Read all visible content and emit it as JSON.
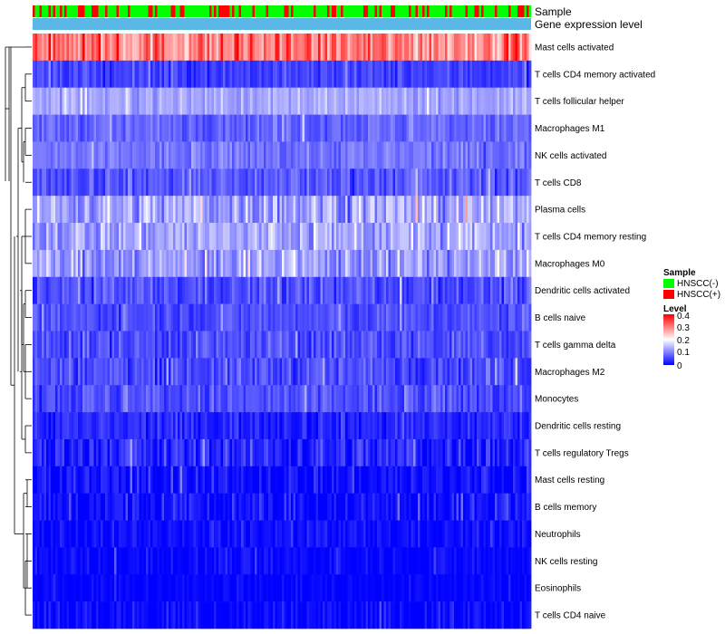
{
  "chart_data": {
    "type": "heatmap",
    "title": "",
    "column_annotations": [
      {
        "name": "Sample",
        "type": "categorical"
      },
      {
        "name": "Gene expression level",
        "type": "constant",
        "color": "#5bb8e6"
      }
    ],
    "rows": [
      {
        "label": "Mast cells activated",
        "mean": 0.3,
        "spread": 0.1
      },
      {
        "label": "T cells CD4 memory activated",
        "mean": 0.05,
        "spread": 0.04
      },
      {
        "label": "T cells follicular helper",
        "mean": 0.13,
        "spread": 0.035
      },
      {
        "label": "Macrophages M1",
        "mean": 0.08,
        "spread": 0.04
      },
      {
        "label": "NK cells activated",
        "mean": 0.09,
        "spread": 0.04
      },
      {
        "label": "T cells CD8",
        "mean": 0.07,
        "spread": 0.05
      },
      {
        "label": "Plasma cells",
        "mean": 0.13,
        "spread": 0.08
      },
      {
        "label": "T cells CD4 memory resting",
        "mean": 0.13,
        "spread": 0.07
      },
      {
        "label": "Macrophages M0",
        "mean": 0.12,
        "spread": 0.07
      },
      {
        "label": "Dendritic cells activated",
        "mean": 0.06,
        "spread": 0.05
      },
      {
        "label": "B cells naive",
        "mean": 0.06,
        "spread": 0.04
      },
      {
        "label": "T cells gamma delta",
        "mean": 0.06,
        "spread": 0.05
      },
      {
        "label": "Macrophages M2",
        "mean": 0.06,
        "spread": 0.05
      },
      {
        "label": "Monocytes",
        "mean": 0.06,
        "spread": 0.05
      },
      {
        "label": "Dendritic cells resting",
        "mean": 0.03,
        "spread": 0.04
      },
      {
        "label": "T cells regulatory  Tregs",
        "mean": 0.03,
        "spread": 0.06
      },
      {
        "label": "Mast cells resting",
        "mean": 0.01,
        "spread": 0.05
      },
      {
        "label": "B cells memory",
        "mean": 0.01,
        "spread": 0.05
      },
      {
        "label": "Neutrophils",
        "mean": 0.01,
        "spread": 0.03
      },
      {
        "label": "NK cells resting",
        "mean": 0.005,
        "spread": 0.03
      },
      {
        "label": "Eosinophils",
        "mean": 0.002,
        "spread": 0.02
      },
      {
        "label": "T cells CD4 naive",
        "mean": 0.005,
        "spread": 0.04
      }
    ],
    "n_samples": 220,
    "proportion_hnscc_pos": 0.28,
    "legend": {
      "sample": {
        "title": "Sample",
        "items": [
          {
            "label": "HNSCC(-)",
            "color": "#00ff00"
          },
          {
            "label": "HNSCC(+)",
            "color": "#ff0000"
          }
        ]
      },
      "level": {
        "title": "Level",
        "range": [
          0,
          0.4
        ],
        "ticks": [
          "0.4",
          "0.3",
          "0.2",
          "0.1",
          "0"
        ],
        "colors": {
          "low": "#0000ff",
          "mid": "#ffffff",
          "high": "#ff0000"
        },
        "midpoint": 0.2
      }
    },
    "dendrogram": "rows clustered (hierarchical)",
    "legend_position": "right"
  }
}
